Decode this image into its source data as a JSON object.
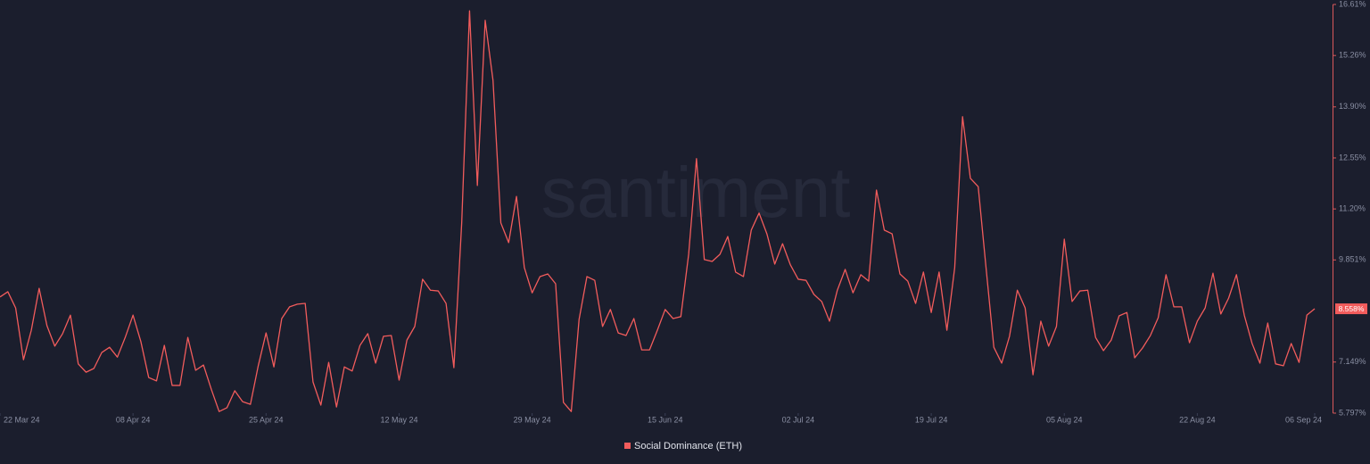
{
  "chart_data": {
    "type": "line",
    "watermark": "santiment",
    "x": [
      "2024-03-22",
      "2024-03-23",
      "2024-03-24",
      "2024-03-25",
      "2024-03-26",
      "2024-03-27",
      "2024-03-28",
      "2024-03-29",
      "2024-03-30",
      "2024-03-31",
      "2024-04-01",
      "2024-04-02",
      "2024-04-03",
      "2024-04-04",
      "2024-04-05",
      "2024-04-06",
      "2024-04-07",
      "2024-04-08",
      "2024-04-09",
      "2024-04-10",
      "2024-04-11",
      "2024-04-12",
      "2024-04-13",
      "2024-04-14",
      "2024-04-15",
      "2024-04-16",
      "2024-04-17",
      "2024-04-18",
      "2024-04-19",
      "2024-04-20",
      "2024-04-21",
      "2024-04-22",
      "2024-04-23",
      "2024-04-24",
      "2024-04-25",
      "2024-04-26",
      "2024-04-27",
      "2024-04-28",
      "2024-04-29",
      "2024-04-30",
      "2024-05-01",
      "2024-05-02",
      "2024-05-03",
      "2024-05-04",
      "2024-05-05",
      "2024-05-06",
      "2024-05-07",
      "2024-05-08",
      "2024-05-09",
      "2024-05-10",
      "2024-05-11",
      "2024-05-12",
      "2024-05-13",
      "2024-05-14",
      "2024-05-15",
      "2024-05-16",
      "2024-05-17",
      "2024-05-18",
      "2024-05-19",
      "2024-05-20",
      "2024-05-21",
      "2024-05-22",
      "2024-05-23",
      "2024-05-24",
      "2024-05-25",
      "2024-05-26",
      "2024-05-27",
      "2024-05-28",
      "2024-05-29",
      "2024-05-30",
      "2024-05-31",
      "2024-06-01",
      "2024-06-02",
      "2024-06-03",
      "2024-06-04",
      "2024-06-05",
      "2024-06-06",
      "2024-06-07",
      "2024-06-08",
      "2024-06-09",
      "2024-06-10",
      "2024-06-11",
      "2024-06-12",
      "2024-06-13",
      "2024-06-14",
      "2024-06-15",
      "2024-06-16",
      "2024-06-17",
      "2024-06-18",
      "2024-06-19",
      "2024-06-20",
      "2024-06-21",
      "2024-06-22",
      "2024-06-23",
      "2024-06-24",
      "2024-06-25",
      "2024-06-26",
      "2024-06-27",
      "2024-06-28",
      "2024-06-29",
      "2024-06-30",
      "2024-07-01",
      "2024-07-02",
      "2024-07-03",
      "2024-07-04",
      "2024-07-05",
      "2024-07-06",
      "2024-07-07",
      "2024-07-08",
      "2024-07-09",
      "2024-07-10",
      "2024-07-11",
      "2024-07-12",
      "2024-07-13",
      "2024-07-14",
      "2024-07-15",
      "2024-07-16",
      "2024-07-17",
      "2024-07-18",
      "2024-07-19",
      "2024-07-20",
      "2024-07-21",
      "2024-07-22",
      "2024-07-23",
      "2024-07-24",
      "2024-07-25",
      "2024-07-26",
      "2024-07-27",
      "2024-07-28",
      "2024-07-29",
      "2024-07-30",
      "2024-07-31",
      "2024-08-01",
      "2024-08-02",
      "2024-08-03",
      "2024-08-04",
      "2024-08-05",
      "2024-08-06",
      "2024-08-07",
      "2024-08-08",
      "2024-08-09",
      "2024-08-10",
      "2024-08-11",
      "2024-08-12",
      "2024-08-13",
      "2024-08-14",
      "2024-08-15",
      "2024-08-16",
      "2024-08-17",
      "2024-08-18",
      "2024-08-19",
      "2024-08-20",
      "2024-08-21",
      "2024-08-22",
      "2024-08-23",
      "2024-08-24",
      "2024-08-25",
      "2024-08-26",
      "2024-08-27",
      "2024-08-28",
      "2024-08-29",
      "2024-08-30",
      "2024-08-31",
      "2024-09-01",
      "2024-09-02",
      "2024-09-03",
      "2024-09-04",
      "2024-09-05",
      "2024-09-06"
    ],
    "series": [
      {
        "name": "Social Dominance (ETH)",
        "color": "#f25c5c",
        "values": [
          8.87,
          9.01,
          8.58,
          7.21,
          7.99,
          9.1,
          8.11,
          7.57,
          7.9,
          8.39,
          7.1,
          6.88,
          6.98,
          7.4,
          7.54,
          7.28,
          7.8,
          8.39,
          7.69,
          6.74,
          6.65,
          7.59,
          6.53,
          6.53,
          7.8,
          6.93,
          7.07,
          6.43,
          5.84,
          5.94,
          6.39,
          6.1,
          6.03,
          7.05,
          7.92,
          7.02,
          8.3,
          8.61,
          8.68,
          8.7,
          6.62,
          6.01,
          7.14,
          5.96,
          7.02,
          6.91,
          7.59,
          7.9,
          7.12,
          7.83,
          7.85,
          6.67,
          7.73,
          8.09,
          9.34,
          9.05,
          9.03,
          8.7,
          7.0,
          10.83,
          16.44,
          11.82,
          16.19,
          14.6,
          10.83,
          10.31,
          11.53,
          9.65,
          8.98,
          9.41,
          9.48,
          9.22,
          6.08,
          5.84,
          8.28,
          9.41,
          9.31,
          8.09,
          8.54,
          7.92,
          7.85,
          8.3,
          7.47,
          7.47,
          7.99,
          8.54,
          8.3,
          8.35,
          10.0,
          12.53,
          9.86,
          9.81,
          10.0,
          10.47,
          9.53,
          9.41,
          10.64,
          11.09,
          10.54,
          9.74,
          10.28,
          9.72,
          9.34,
          9.31,
          8.94,
          8.75,
          8.23,
          9.05,
          9.6,
          8.98,
          9.46,
          9.29,
          11.7,
          10.64,
          10.54,
          9.48,
          9.29,
          8.7,
          9.53,
          8.46,
          9.53,
          7.99,
          9.65,
          13.64,
          12.01,
          11.79,
          9.65,
          7.54,
          7.12,
          7.83,
          9.05,
          8.58,
          6.81,
          8.23,
          7.57,
          8.09,
          10.4,
          8.75,
          9.03,
          9.05,
          7.8,
          7.45,
          7.73,
          8.37,
          8.46,
          7.26,
          7.52,
          7.85,
          8.32,
          9.46,
          8.61,
          8.61,
          7.66,
          8.23,
          8.58,
          9.5,
          8.42,
          8.84,
          9.46,
          8.39,
          7.64,
          7.12,
          8.18,
          7.1,
          7.05,
          7.64,
          7.14,
          8.39,
          8.558
        ]
      }
    ],
    "last_value_label": "8.558%",
    "xlim": [
      "2024-03-22",
      "2024-09-06"
    ],
    "xticks": [
      {
        "value": "2024-03-22",
        "label": "22 Mar 24"
      },
      {
        "value": "2024-04-08",
        "label": "08 Apr 24"
      },
      {
        "value": "2024-04-25",
        "label": "25 Apr 24"
      },
      {
        "value": "2024-05-12",
        "label": "12 May 24"
      },
      {
        "value": "2024-05-29",
        "label": "29 May 24"
      },
      {
        "value": "2024-06-15",
        "label": "15 Jun 24"
      },
      {
        "value": "2024-07-02",
        "label": "02 Jul 24"
      },
      {
        "value": "2024-07-19",
        "label": "19 Jul 24"
      },
      {
        "value": "2024-08-05",
        "label": "05 Aug 24"
      },
      {
        "value": "2024-08-22",
        "label": "22 Aug 24"
      },
      {
        "value": "2024-09-06",
        "label": "06 Sep 24"
      }
    ],
    "ylim": [
      5.797,
      16.61
    ],
    "yticks": [
      {
        "value": 5.797,
        "label": "5.797%"
      },
      {
        "value": 7.149,
        "label": "7.149%"
      },
      {
        "value": 9.851,
        "label": "9.851%"
      },
      {
        "value": 11.2,
        "label": "11.20%"
      },
      {
        "value": 12.55,
        "label": "12.55%"
      },
      {
        "value": 13.9,
        "label": "13.90%"
      },
      {
        "value": 15.26,
        "label": "15.26%"
      },
      {
        "value": 16.61,
        "label": "16.61%"
      }
    ]
  }
}
